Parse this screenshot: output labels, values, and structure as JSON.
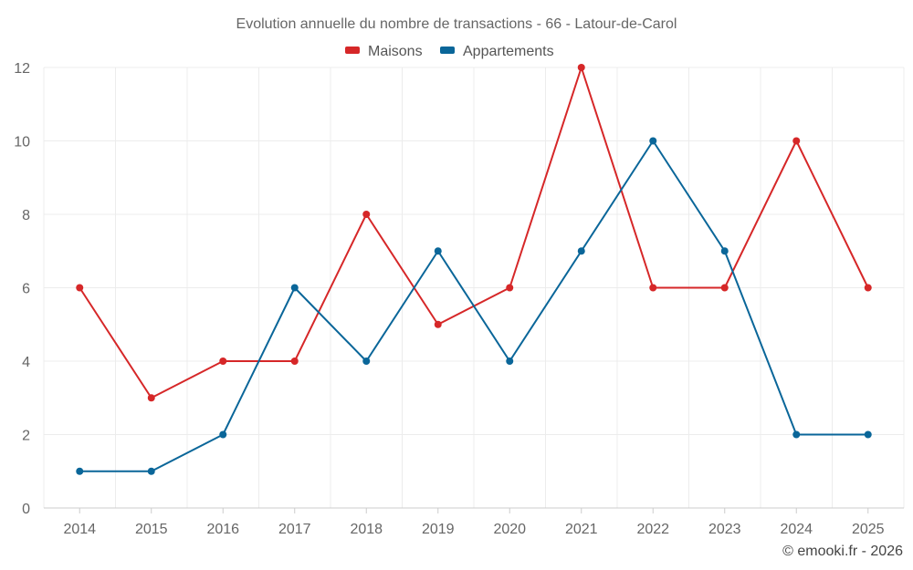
{
  "chart_data": {
    "type": "line",
    "title": "Evolution annuelle du nombre de transactions - 66 - Latour-de-Carol",
    "categories": [
      "2014",
      "2015",
      "2016",
      "2017",
      "2018",
      "2019",
      "2020",
      "2021",
      "2022",
      "2023",
      "2024",
      "2025"
    ],
    "series": [
      {
        "name": "Maisons",
        "color": "#d62728",
        "values": [
          6,
          3,
          4,
          4,
          8,
          5,
          6,
          12,
          6,
          6,
          10,
          6
        ]
      },
      {
        "name": "Appartements",
        "color": "#0a6699",
        "values": [
          1,
          1,
          2,
          6,
          4,
          7,
          4,
          7,
          10,
          7,
          2,
          2
        ]
      }
    ],
    "ylim": [
      0,
      12
    ],
    "yticks": [
      0,
      2,
      4,
      6,
      8,
      10,
      12
    ],
    "xlabel": "",
    "ylabel": "",
    "grid": true,
    "legend_position": "top-center"
  },
  "credit": "© emooki.fr - 2026"
}
